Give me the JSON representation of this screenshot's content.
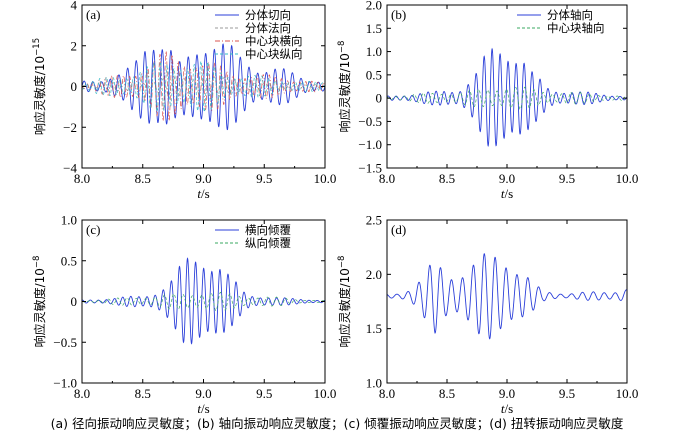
{
  "caption": "(a) 径向振动响应灵敏度；(b) 轴向振动响应灵敏度；(c) 倾覆振动响应灵敏度；(d) 扭转振动响应灵敏度",
  "colors": {
    "blue": "#2b3fd9",
    "gray": "#9a9a9a",
    "red": "#d9534f",
    "green": "#3aa860",
    "cyan": "#31b8c4"
  },
  "chart_data": [
    {
      "panel_label": "(a)",
      "type": "line",
      "ylabel": "响应灵敏度/10^-15",
      "ylabel_main": "响应灵敏度/10",
      "ylabel_exp": "−15",
      "xlabel": "t/s",
      "xlabel_var": "t",
      "xlabel_unit": "/s",
      "xlim": [
        8.0,
        10.0
      ],
      "ylim": [
        -4,
        4
      ],
      "xticks": [
        "8.0",
        "8.5",
        "9.0",
        "9.5",
        "10.0"
      ],
      "yticks": [
        "−4",
        "−2",
        "0",
        "2",
        "4"
      ],
      "ytick_values": [
        -4,
        -2,
        0,
        2,
        4
      ],
      "legend": "top-right",
      "series": [
        {
          "name": "分体切向",
          "style": "solid",
          "color": "#2b3fd9",
          "envelope": [
            [
              8.0,
              0.3
            ],
            [
              8.2,
              0.5
            ],
            [
              8.35,
              0.7
            ],
            [
              8.45,
              1.5
            ],
            [
              8.55,
              3.4
            ],
            [
              8.6,
              3.6
            ],
            [
              8.7,
              2.4
            ],
            [
              8.8,
              1.2
            ],
            [
              8.9,
              1.8
            ],
            [
              9.0,
              3.2
            ],
            [
              9.05,
              3.3
            ],
            [
              9.15,
              2.5
            ],
            [
              9.3,
              1.6
            ],
            [
              9.5,
              1.2
            ],
            [
              9.7,
              0.8
            ],
            [
              9.85,
              0.5
            ],
            [
              10.0,
              0.3
            ]
          ],
          "freq_hz": 14
        },
        {
          "name": "分体法向",
          "style": "dashed",
          "color": "#9a9a9a",
          "envelope": [
            [
              8.0,
              0.1
            ],
            [
              8.5,
              0.3
            ],
            [
              8.9,
              0.6
            ],
            [
              9.0,
              0.7
            ],
            [
              9.2,
              0.4
            ],
            [
              9.6,
              0.2
            ],
            [
              10.0,
              0.1
            ]
          ],
          "freq_hz": 12
        },
        {
          "name": "中心块横向",
          "style": "dash-dot",
          "color": "#d9534f",
          "envelope": [
            [
              8.0,
              0.2
            ],
            [
              8.3,
              0.6
            ],
            [
              8.55,
              1.3
            ],
            [
              8.7,
              1.8
            ],
            [
              8.85,
              1.8
            ],
            [
              9.0,
              1.4
            ],
            [
              9.2,
              0.9
            ],
            [
              9.5,
              0.6
            ],
            [
              9.8,
              0.4
            ],
            [
              10.0,
              0.2
            ]
          ],
          "freq_hz": 20
        },
        {
          "name": "中心块纵向",
          "style": "dashed",
          "color": "#31b8c4",
          "envelope": [
            [
              8.0,
              0.2
            ],
            [
              8.3,
              0.6
            ],
            [
              8.6,
              1.2
            ],
            [
              8.8,
              1.6
            ],
            [
              8.95,
              1.4
            ],
            [
              9.2,
              0.8
            ],
            [
              9.6,
              0.4
            ],
            [
              10.0,
              0.2
            ]
          ],
          "freq_hz": 18
        }
      ]
    },
    {
      "panel_label": "(b)",
      "type": "line",
      "ylabel": "响应灵敏度/10^-8",
      "ylabel_main": "响应灵敏度/10",
      "ylabel_exp": "−8",
      "xlabel": "t/s",
      "xlabel_var": "t",
      "xlabel_unit": "/s",
      "xlim": [
        8.0,
        10.0
      ],
      "ylim": [
        -1.5,
        2.0
      ],
      "xticks": [
        "8.0",
        "8.5",
        "9.0",
        "9.5",
        "10.0"
      ],
      "yticks": [
        "−1.5",
        "−1.0",
        "−0.5",
        "0",
        "0.5",
        "1.0",
        "1.5",
        "2.0"
      ],
      "ytick_values": [
        -1.5,
        -1,
        -0.5,
        0,
        0.5,
        1,
        1.5,
        2
      ],
      "legend": "top-right",
      "series": [
        {
          "name": "分体轴向",
          "style": "solid",
          "color": "#2b3fd9",
          "envelope": [
            [
              8.0,
              0.05
            ],
            [
              8.2,
              0.1
            ],
            [
              8.4,
              0.15
            ],
            [
              8.6,
              0.25
            ],
            [
              8.75,
              0.6
            ],
            [
              8.85,
              1.1
            ],
            [
              8.95,
              1.5
            ],
            [
              9.0,
              1.6
            ],
            [
              9.1,
              1.2
            ],
            [
              9.2,
              0.6
            ],
            [
              9.35,
              0.25
            ],
            [
              9.6,
              0.15
            ],
            [
              9.8,
              0.1
            ],
            [
              10.0,
              0.05
            ]
          ],
          "freq_hz": 15
        },
        {
          "name": "中心块轴向",
          "style": "dashed",
          "color": "#3aa860",
          "envelope": [
            [
              8.0,
              0.05
            ],
            [
              8.8,
              0.2
            ],
            [
              9.0,
              0.35
            ],
            [
              9.2,
              0.2
            ],
            [
              10.0,
              0.05
            ]
          ],
          "freq_hz": 13
        }
      ]
    },
    {
      "panel_label": "(c)",
      "type": "line",
      "ylabel": "响应灵敏度/10^-8",
      "ylabel_main": "响应灵敏度/10",
      "ylabel_exp": "−8",
      "xlabel": "t/s",
      "xlabel_var": "t",
      "xlabel_unit": "/s",
      "xlim": [
        8.0,
        10.0
      ],
      "ylim": [
        -1.0,
        1.0
      ],
      "xticks": [
        "8.0",
        "8.5",
        "9.0",
        "9.5",
        "10.0"
      ],
      "yticks": [
        "−1.0",
        "−0.5",
        "0",
        "0.5",
        "1.0"
      ],
      "ytick_values": [
        -1,
        -0.5,
        0,
        0.5,
        1
      ],
      "legend": "top-right",
      "series": [
        {
          "name": "横向倾覆",
          "style": "solid",
          "color": "#2b3fd9",
          "envelope": [
            [
              8.0,
              0.02
            ],
            [
              8.3,
              0.05
            ],
            [
              8.5,
              0.08
            ],
            [
              8.6,
              0.15
            ],
            [
              8.75,
              0.3
            ],
            [
              8.85,
              0.55
            ],
            [
              8.95,
              0.75
            ],
            [
              9.0,
              0.8
            ],
            [
              9.1,
              0.6
            ],
            [
              9.2,
              0.35
            ],
            [
              9.35,
              0.12
            ],
            [
              9.6,
              0.05
            ],
            [
              10.0,
              0.02
            ]
          ],
          "freq_hz": 15
        },
        {
          "name": "纵向倾覆",
          "style": "dashed",
          "color": "#3aa860",
          "envelope": [
            [
              8.0,
              0.01
            ],
            [
              8.8,
              0.1
            ],
            [
              9.0,
              0.15
            ],
            [
              9.2,
              0.1
            ],
            [
              10.0,
              0.01
            ]
          ],
          "freq_hz": 13
        }
      ]
    },
    {
      "panel_label": "(d)",
      "type": "line",
      "ylabel": "响应灵敏度/10^-8",
      "ylabel_main": "响应灵敏度/10",
      "ylabel_exp": "−8",
      "xlabel": "t/s",
      "xlabel_var": "t",
      "xlabel_unit": "/s",
      "xlim": [
        8.0,
        10.0
      ],
      "ylim": [
        1.0,
        2.5
      ],
      "xticks": [
        "8.0",
        "8.5",
        "9.0",
        "9.5",
        "10.0"
      ],
      "yticks": [
        "1.0",
        "1.5",
        "2.0",
        "2.5"
      ],
      "ytick_values": [
        1,
        1.5,
        2,
        2.5
      ],
      "series": [
        {
          "style": "solid",
          "color": "#2b3fd9",
          "baseline": 1.8,
          "envelope": [
            [
              8.0,
              0.02
            ],
            [
              8.1,
              0.03
            ],
            [
              8.2,
              0.1
            ],
            [
              8.3,
              0.2
            ],
            [
              8.4,
              0.35
            ],
            [
              8.5,
              0.25
            ],
            [
              8.6,
              0.3
            ],
            [
              8.75,
              0.35
            ],
            [
              8.9,
              0.45
            ],
            [
              9.0,
              0.5
            ],
            [
              9.1,
              0.3
            ],
            [
              9.2,
              0.15
            ],
            [
              9.3,
              0.05
            ],
            [
              9.5,
              0.03
            ],
            [
              9.7,
              0.04
            ],
            [
              9.85,
              0.05
            ],
            [
              10.0,
              0.08
            ]
          ],
          "freq_hz": 11
        }
      ]
    }
  ]
}
